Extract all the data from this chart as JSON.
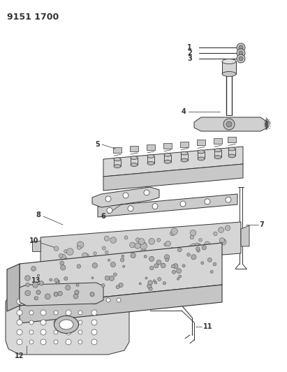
{
  "title": "9151 1700",
  "bg_color": "#ffffff",
  "line_color": "#333333",
  "title_fontsize": 9,
  "label_fontsize": 7,
  "fig_width": 4.11,
  "fig_height": 5.33,
  "dpi": 100
}
